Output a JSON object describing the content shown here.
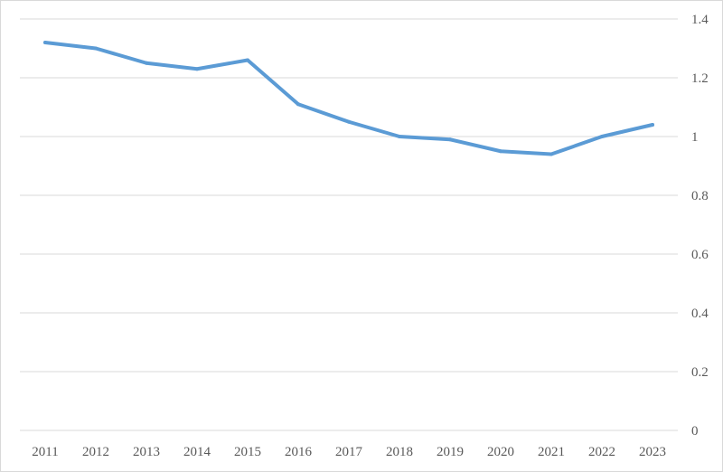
{
  "chart_data": {
    "type": "line",
    "title": "",
    "xlabel": "",
    "ylabel": "",
    "categories": [
      "2011",
      "2012",
      "2013",
      "2014",
      "2015",
      "2016",
      "2017",
      "2018",
      "2019",
      "2020",
      "2021",
      "2022",
      "2023"
    ],
    "series": [
      {
        "values": [
          1.32,
          1.3,
          1.25,
          1.23,
          1.26,
          1.11,
          1.05,
          1.0,
          0.99,
          0.95,
          0.94,
          1.0,
          1.04
        ],
        "color": "#5b9bd5"
      }
    ],
    "ylim": [
      0,
      1.4
    ],
    "y_ticks": [
      "0",
      "0.2",
      "0.4",
      "0.6",
      "0.8",
      "1",
      "1.2",
      "1.4"
    ],
    "y_axis_position": "right",
    "grid": true,
    "legend": "none"
  }
}
